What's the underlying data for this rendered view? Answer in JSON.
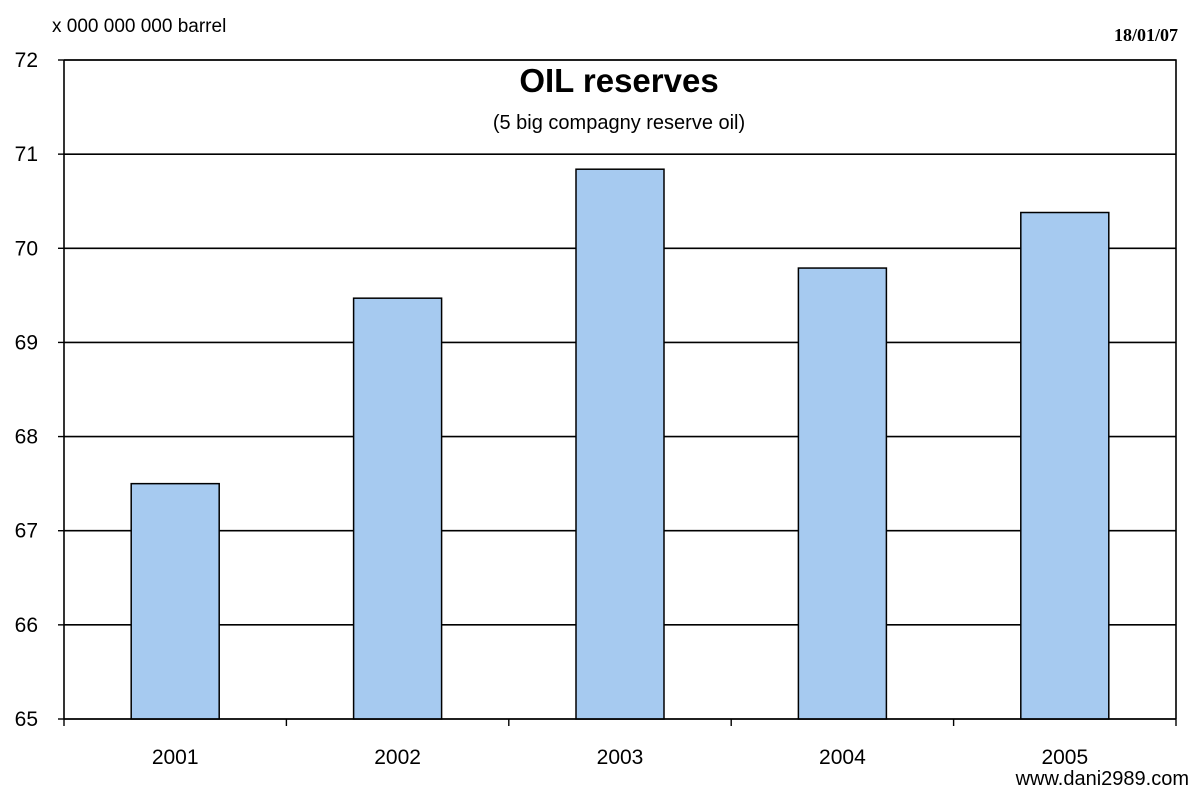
{
  "header": {
    "unit_label": "x 000 000 000 barrel",
    "date": "18/01/07"
  },
  "footer": {
    "credit": "www.dani2989.com"
  },
  "chart_data": {
    "type": "bar",
    "title": "OIL reserves",
    "subtitle": "(5 big compagny reserve oil)",
    "xlabel": "",
    "ylabel": "x 000 000 000 barrel",
    "categories": [
      "2001",
      "2002",
      "2003",
      "2004",
      "2005"
    ],
    "values": [
      67.5,
      69.47,
      70.84,
      69.79,
      70.38
    ],
    "ylim": [
      65,
      72
    ],
    "yticks": [
      "65",
      "66",
      "67",
      "68",
      "69",
      "70",
      "71",
      "72"
    ],
    "grid": true,
    "legend": "none",
    "colors": {
      "bar_fill": "#a6caf0",
      "bar_stroke": "#000000",
      "plot_border": "#000000",
      "grid": "#000000"
    }
  }
}
